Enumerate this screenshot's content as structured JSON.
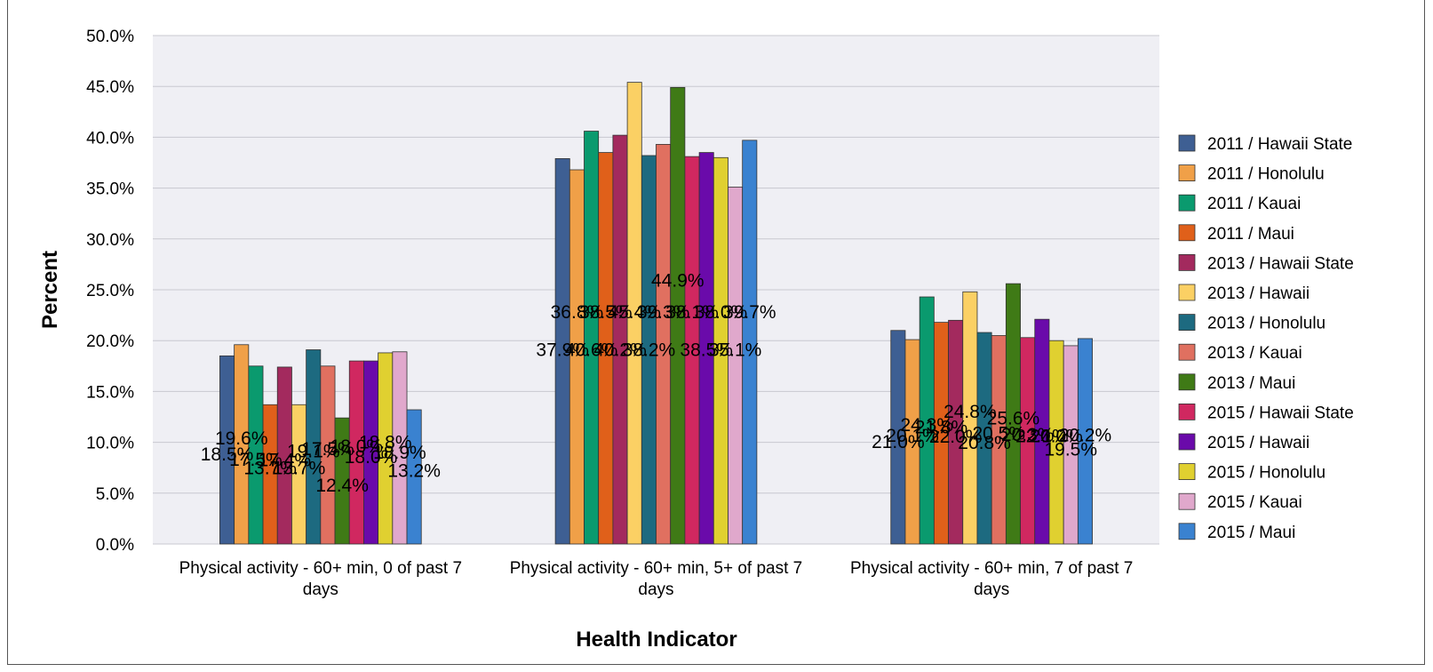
{
  "chart_data": {
    "type": "bar",
    "title": "",
    "xlabel": "Health Indicator",
    "ylabel": "Percent",
    "ylim": [
      0,
      50
    ],
    "yticks": [
      "0.0%",
      "5.0%",
      "10.0%",
      "15.0%",
      "20.0%",
      "25.0%",
      "30.0%",
      "35.0%",
      "40.0%",
      "45.0%",
      "50.0%"
    ],
    "grid": true,
    "legend_position": "right",
    "categories": [
      [
        "Physical activity - 60+ min, 0 of past 7",
        "days"
      ],
      [
        "Physical activity - 60+ min, 5+ of past 7",
        "days"
      ],
      [
        "Physical activity - 60+ min, 7 of past 7",
        "days"
      ]
    ],
    "series": [
      {
        "name": "2011 / Hawaii State",
        "color": "#3e5f93",
        "values": [
          18.5,
          37.9,
          21.0
        ]
      },
      {
        "name": "2011 / Honolulu",
        "color": "#f0a048",
        "values": [
          19.6,
          36.8,
          20.1
        ]
      },
      {
        "name": "2011 / Kauai",
        "color": "#0a9a6e",
        "values": [
          17.5,
          40.6,
          24.3
        ]
      },
      {
        "name": "2011 / Maui",
        "color": "#e0601a",
        "values": [
          13.7,
          38.5,
          21.8
        ]
      },
      {
        "name": "2013 / Hawaii State",
        "color": "#a32a5e",
        "values": [
          17.4,
          40.2,
          22.0
        ]
      },
      {
        "name": "2013 / Hawaii",
        "color": "#fbd064",
        "values": [
          13.7,
          45.4,
          24.8
        ]
      },
      {
        "name": "2013 / Honolulu",
        "color": "#1d6a80",
        "values": [
          19.1,
          38.2,
          20.8
        ]
      },
      {
        "name": "2013 / Kauai",
        "color": "#e07060",
        "values": [
          17.5,
          39.3,
          20.5
        ]
      },
      {
        "name": "2013 / Maui",
        "color": "#3f7a16",
        "values": [
          12.4,
          44.9,
          25.6
        ]
      },
      {
        "name": "2015 / Hawaii State",
        "color": "#d02860",
        "values": [
          18.0,
          38.1,
          20.3
        ]
      },
      {
        "name": "2015 / Hawaii",
        "color": "#6a0aaa",
        "values": [
          18.0,
          38.5,
          22.1
        ]
      },
      {
        "name": "2015 / Honolulu",
        "color": "#e0d030",
        "values": [
          18.8,
          38.0,
          20.0
        ]
      },
      {
        "name": "2015 / Kauai",
        "color": "#e0a8cc",
        "values": [
          18.9,
          35.1,
          19.5
        ]
      },
      {
        "name": "2015 / Maui",
        "color": "#3a82d0",
        "values": [
          13.2,
          39.7,
          20.2
        ]
      }
    ],
    "data_labels": [
      [
        "18.5%",
        "19.6%",
        "17.5%",
        "13.7%",
        "17.4%",
        "13.7%",
        "19.1%",
        "17.5%",
        "12.4%",
        "18.0%",
        "18.0%",
        "18.8%",
        "18.9%",
        "13.2%"
      ],
      [
        "37.9%",
        "36.8%",
        "40.6%",
        "38.5%",
        "40.2%",
        "45.4%",
        "38.2%",
        "39.3%",
        "44.9%",
        "38.1%",
        "38.5%",
        "38.0%",
        "35.1%",
        "39.7%"
      ],
      [
        "21.0%",
        "20.1%",
        "24.3%",
        "21.8%",
        "22.0%",
        "24.8%",
        "20.8%",
        "20.5%",
        "25.6%",
        "20.3%",
        "22.1%",
        "20.0%",
        "19.5%",
        "20.2%"
      ]
    ]
  }
}
